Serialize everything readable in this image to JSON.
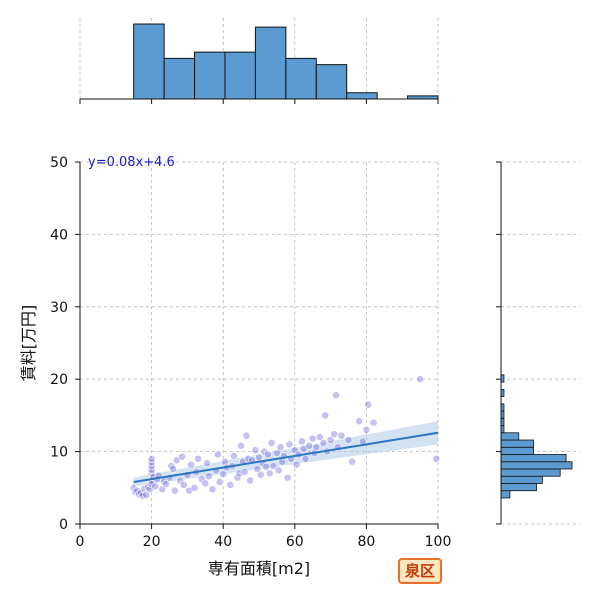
{
  "chart_data": {
    "type": "scatter",
    "title": "",
    "xlabel": "専有面積[m2]",
    "ylabel": "賃料[万円]",
    "xlim": [
      0,
      100
    ],
    "ylim": [
      0,
      50
    ],
    "x_ticks": [
      0,
      20,
      40,
      60,
      80,
      100
    ],
    "y_ticks": [
      0,
      10,
      20,
      30,
      40,
      50
    ],
    "grid": true,
    "regression": {
      "label": "y=0.08x+4.6",
      "slope": 0.08,
      "intercept": 4.6,
      "x_range": [
        15,
        100
      ],
      "ci_halfwidth_at_ends": [
        0.6,
        1.6
      ]
    },
    "series": [
      {
        "type": "scatter",
        "points": [
          [
            15,
            5.0
          ],
          [
            15.5,
            4.4
          ],
          [
            16,
            4.6
          ],
          [
            16.5,
            4.1
          ],
          [
            17,
            4.3
          ],
          [
            17.5,
            3.9
          ],
          [
            18,
            4.9
          ],
          [
            18.5,
            4.0
          ],
          [
            19,
            5.1
          ],
          [
            19.5,
            4.8
          ],
          [
            20,
            6.0
          ],
          [
            20,
            7.0
          ],
          [
            20,
            7.5
          ],
          [
            20,
            8.0
          ],
          [
            20,
            8.5
          ],
          [
            20,
            9.0
          ],
          [
            20,
            5.5
          ],
          [
            20.5,
            6.5
          ],
          [
            21,
            5.2
          ],
          [
            21.5,
            6.2
          ],
          [
            22,
            6.7
          ],
          [
            23,
            4.8
          ],
          [
            23.5,
            5.9
          ],
          [
            24,
            5.5
          ],
          [
            25,
            6.4
          ],
          [
            25.5,
            8.0
          ],
          [
            26,
            7.6
          ],
          [
            26.5,
            4.6
          ],
          [
            27,
            8.8
          ],
          [
            28,
            6.0
          ],
          [
            28.5,
            9.3
          ],
          [
            29,
            5.4
          ],
          [
            30,
            6.8
          ],
          [
            30.5,
            4.6
          ],
          [
            31,
            8.2
          ],
          [
            32,
            5.0
          ],
          [
            32.5,
            7.2
          ],
          [
            33,
            9.0
          ],
          [
            34,
            6.2
          ],
          [
            35,
            5.6
          ],
          [
            35.5,
            8.4
          ],
          [
            36,
            6.6
          ],
          [
            37,
            4.8
          ],
          [
            38,
            7.4
          ],
          [
            38.5,
            9.6
          ],
          [
            39,
            5.8
          ],
          [
            40,
            6.9
          ],
          [
            40.5,
            8.6
          ],
          [
            41,
            7.8
          ],
          [
            42,
            5.4
          ],
          [
            42.5,
            8.0
          ],
          [
            43,
            9.4
          ],
          [
            44,
            6.4
          ],
          [
            44.5,
            7.0
          ],
          [
            45,
            10.8
          ],
          [
            45.5,
            8.6
          ],
          [
            46,
            7.2
          ],
          [
            46.5,
            12.2
          ],
          [
            47,
            9.0
          ],
          [
            47.5,
            6.0
          ],
          [
            48,
            8.8
          ],
          [
            49,
            10.2
          ],
          [
            49.5,
            7.6
          ],
          [
            50,
            9.2
          ],
          [
            50.5,
            6.8
          ],
          [
            51,
            8.4
          ],
          [
            51.5,
            10.0
          ],
          [
            52,
            7.9
          ],
          [
            52.5,
            9.6
          ],
          [
            53,
            7.0
          ],
          [
            53.5,
            11.2
          ],
          [
            54,
            8.0
          ],
          [
            55,
            9.8
          ],
          [
            55.5,
            7.4
          ],
          [
            56,
            10.6
          ],
          [
            56.5,
            8.6
          ],
          [
            57,
            9.4
          ],
          [
            58,
            6.4
          ],
          [
            58.5,
            11.0
          ],
          [
            59,
            9.0
          ],
          [
            60,
            10.2
          ],
          [
            60.5,
            8.2
          ],
          [
            61,
            9.6
          ],
          [
            62,
            11.4
          ],
          [
            62.5,
            10.4
          ],
          [
            63,
            9.0
          ],
          [
            64,
            10.8
          ],
          [
            65,
            11.8
          ],
          [
            65.5,
            9.8
          ],
          [
            66,
            10.6
          ],
          [
            67,
            12.0
          ],
          [
            68,
            11.2
          ],
          [
            68.5,
            15.0
          ],
          [
            69,
            10.0
          ],
          [
            70,
            11.6
          ],
          [
            71,
            12.4
          ],
          [
            71.5,
            17.8
          ],
          [
            72,
            10.6
          ],
          [
            73,
            12.2
          ],
          [
            75,
            11.6
          ],
          [
            76,
            8.6
          ],
          [
            78,
            14.2
          ],
          [
            79,
            11.4
          ],
          [
            80,
            13.0
          ],
          [
            80.5,
            16.5
          ],
          [
            82,
            14.0
          ],
          [
            95,
            20.0
          ],
          [
            99.5,
            9.0
          ]
        ]
      }
    ],
    "top_histogram": {
      "bin_edges": [
        15,
        23.5,
        32,
        40.5,
        49,
        57.5,
        66,
        74.5,
        83,
        91.5,
        100
      ],
      "counts": [
        24,
        13,
        15,
        15,
        23,
        13,
        11,
        2,
        0,
        1
      ]
    },
    "right_histogram": {
      "bins": [
        {
          "y": [
            3.6,
            4.6
          ],
          "count": 3
        },
        {
          "y": [
            4.6,
            5.6
          ],
          "count": 12
        },
        {
          "y": [
            5.6,
            6.6
          ],
          "count": 14
        },
        {
          "y": [
            6.6,
            7.6
          ],
          "count": 20
        },
        {
          "y": [
            7.6,
            8.6
          ],
          "count": 24
        },
        {
          "y": [
            8.6,
            9.6
          ],
          "count": 22
        },
        {
          "y": [
            9.6,
            10.6
          ],
          "count": 11
        },
        {
          "y": [
            10.6,
            11.6
          ],
          "count": 11
        },
        {
          "y": [
            11.6,
            12.6
          ],
          "count": 6
        },
        {
          "y": [
            12.6,
            13.6
          ],
          "count": 1
        },
        {
          "y": [
            13.6,
            14.6
          ],
          "count": 1
        },
        {
          "y": [
            14.6,
            15.6
          ],
          "count": 1
        },
        {
          "y": [
            15.6,
            16.6
          ],
          "count": 1
        },
        {
          "y": [
            16.6,
            17.6
          ],
          "count": 0
        },
        {
          "y": [
            17.6,
            18.6
          ],
          "count": 1
        },
        {
          "y": [
            18.6,
            19.6
          ],
          "count": 0
        },
        {
          "y": [
            19.6,
            20.6
          ],
          "count": 1
        }
      ]
    }
  },
  "badge_label": "泉区",
  "colors": {
    "hist_fill": "#5b9bd1",
    "hist_edge": "#111111",
    "scatter_fill": "#6f66d6",
    "line": "#2c76c0",
    "ci_band": "#9bbfe2",
    "grid": "#b5b5b5",
    "badge_fill": "#fde7c0",
    "badge_border": "#e8702a",
    "badge_text": "#c43a0a"
  }
}
